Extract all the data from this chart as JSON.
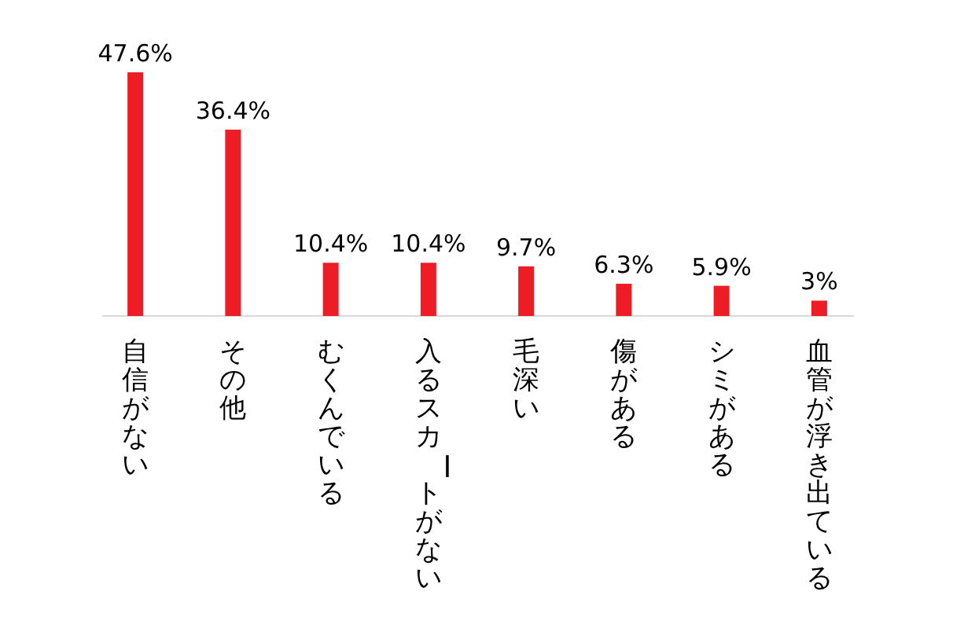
{
  "chart_data": {
    "type": "bar",
    "categories": [
      "自信がない",
      "その他",
      "むくんでいる",
      "入るスカートがない",
      "毛深い",
      "傷がある",
      "シミがある",
      "血管が浮き出ている"
    ],
    "values": [
      47.6,
      36.4,
      10.4,
      10.4,
      9.7,
      6.3,
      5.9,
      3
    ],
    "value_labels": [
      "47.6%",
      "36.4%",
      "10.4%",
      "10.4%",
      "9.7%",
      "6.3%",
      "5.9%",
      "3%"
    ],
    "color": "#ee1c25"
  }
}
